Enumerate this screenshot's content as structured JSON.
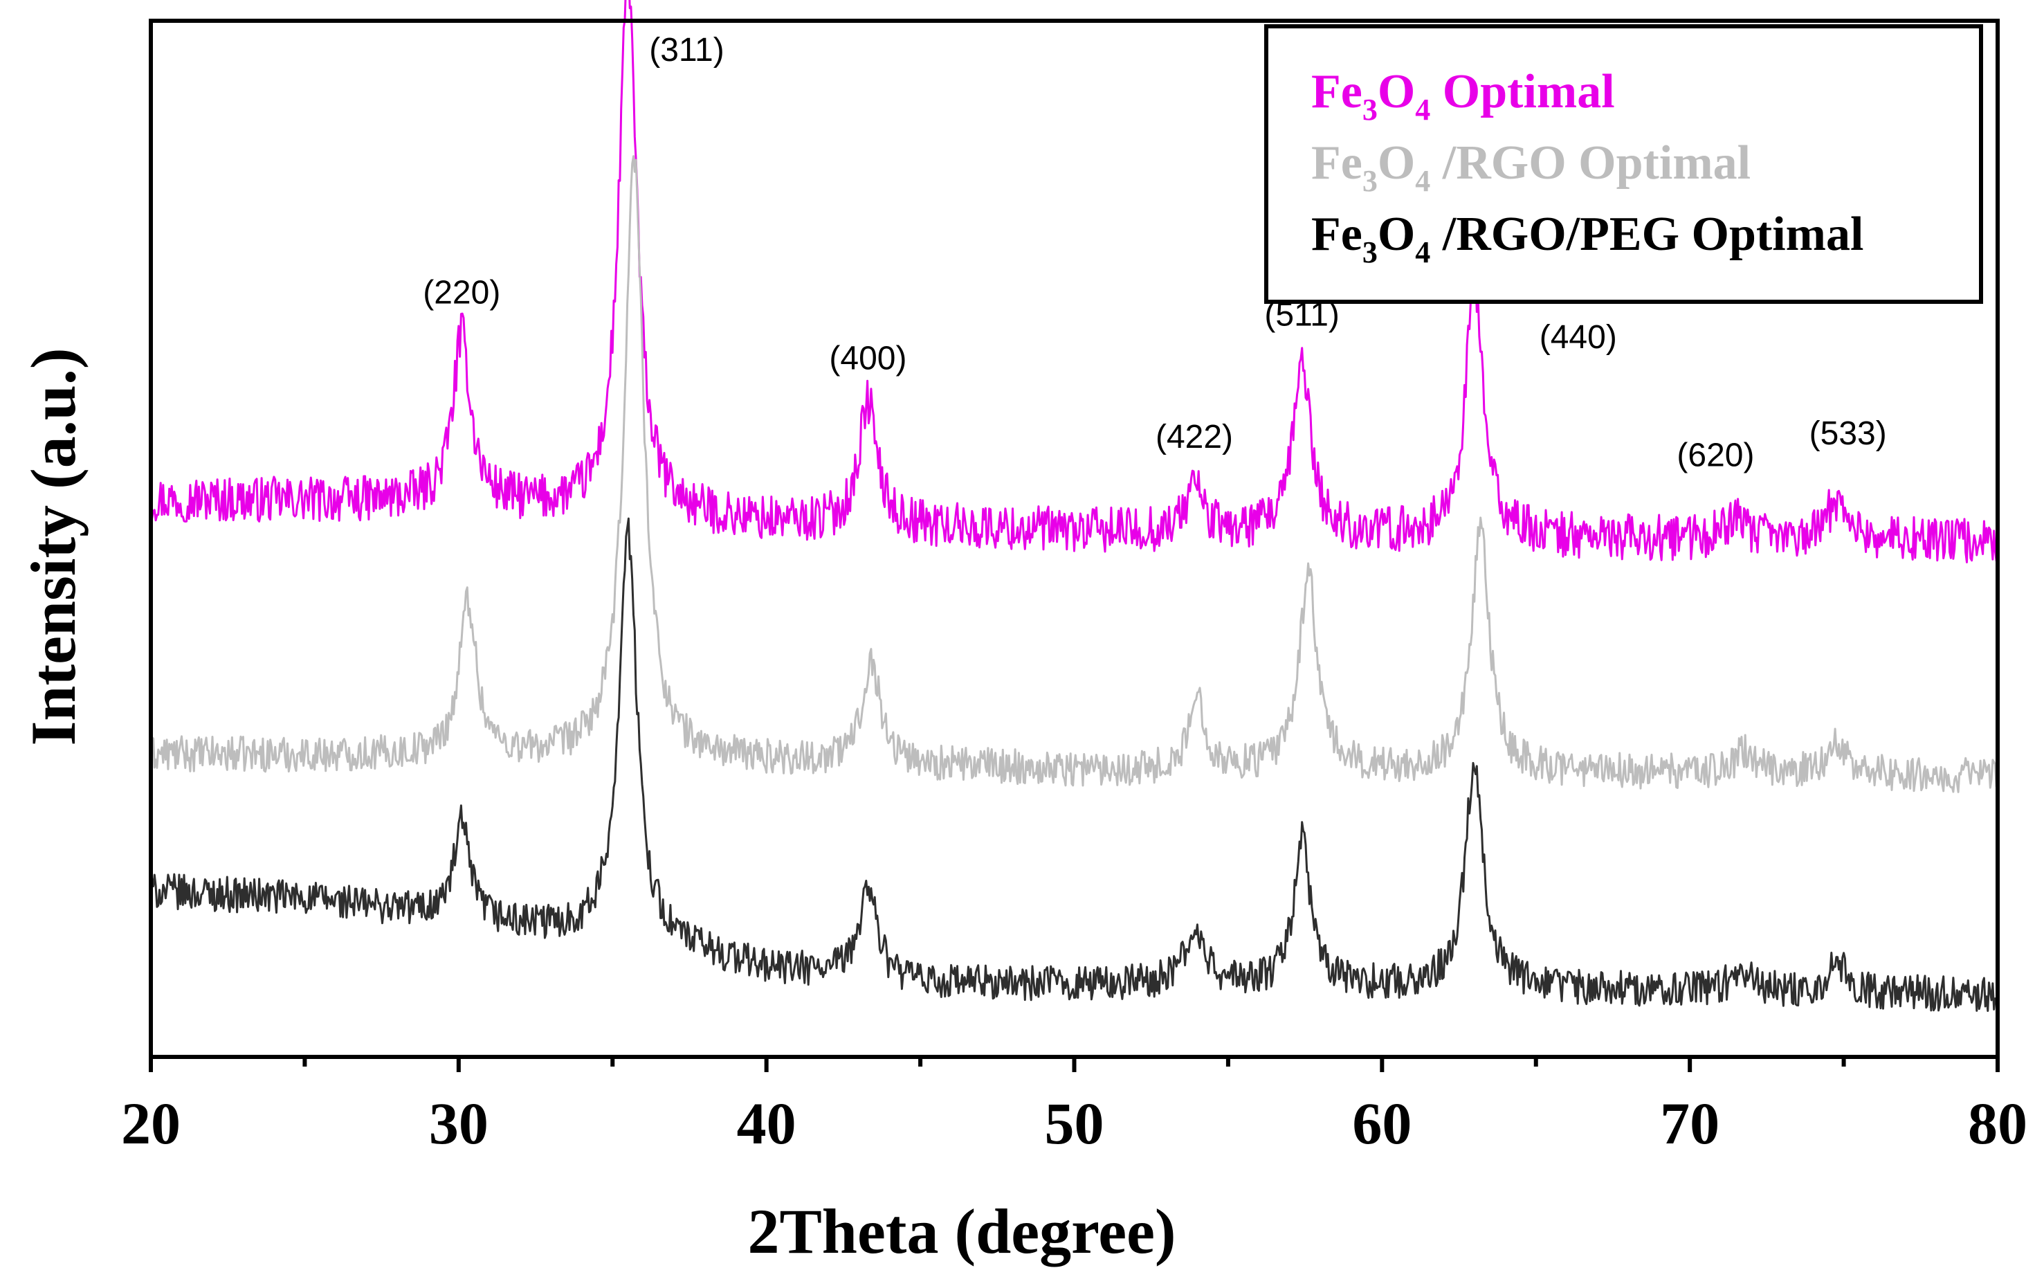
{
  "chart_data": {
    "type": "line",
    "title": "",
    "xlabel": "2Theta (degree)",
    "ylabel": "Intensity (a.u.)",
    "xlim": [
      20,
      80
    ],
    "ylim": [
      0,
      1
    ],
    "x_ticks": [
      "20",
      "30",
      "40",
      "50",
      "60",
      "70",
      "80"
    ],
    "x_tick_values": [
      20,
      30,
      40,
      50,
      60,
      70,
      80
    ],
    "grid": false,
    "legend_position": "top-right",
    "legend": [
      {
        "prefix": "Fe",
        "sub1": "3",
        "mid": "O",
        "sub2": "4",
        "suffix": " Optimal",
        "color": "#e800e8"
      },
      {
        "prefix": "Fe",
        "sub1": "3",
        "mid": "O",
        "sub2": "4",
        "suffix": " /RGO Optimal",
        "color": "#bdbdbd"
      },
      {
        "prefix": "Fe",
        "sub1": "3",
        "mid": "O",
        "sub2": "4",
        "suffix": " /RGO/PEG Optimal",
        "color": "#000000"
      }
    ],
    "peak_labels": [
      {
        "text": "(220)",
        "x": 30.1
      },
      {
        "text": "(311)",
        "x": 35.5
      },
      {
        "text": "(400)",
        "x": 43.3
      },
      {
        "text": "(422)",
        "x": 53.9
      },
      {
        "text": "(511)",
        "x": 57.4
      },
      {
        "text": "(440)",
        "x": 63.0
      },
      {
        "text": "(620)",
        "x": 71.4
      },
      {
        "text": "(533)",
        "x": 74.8
      }
    ],
    "series": [
      {
        "name": "Fe3O4 Optimal",
        "color": "#e800e8",
        "baseline": [
          [
            20,
            0.538
          ],
          [
            30,
            0.535
          ],
          [
            40,
            0.515
          ],
          [
            50,
            0.507
          ],
          [
            60,
            0.503
          ],
          [
            70,
            0.499
          ],
          [
            80,
            0.498
          ]
        ],
        "peaks": [
          [
            30.1,
            0.16,
            0.35
          ],
          [
            35.5,
            0.52,
            0.35
          ],
          [
            43.3,
            0.12,
            0.35
          ],
          [
            53.9,
            0.05,
            0.3
          ],
          [
            57.4,
            0.17,
            0.33
          ],
          [
            63.0,
            0.24,
            0.35
          ],
          [
            71.4,
            0.02,
            0.4
          ],
          [
            74.8,
            0.04,
            0.4
          ]
        ],
        "noise": 0.022
      },
      {
        "name": "Fe3O4 /RGO Optimal",
        "color": "#bdbdbd",
        "baseline": [
          [
            20,
            0.292
          ],
          [
            30,
            0.29
          ],
          [
            40,
            0.285
          ],
          [
            50,
            0.277
          ],
          [
            60,
            0.276
          ],
          [
            70,
            0.274
          ],
          [
            80,
            0.271
          ]
        ],
        "peaks": [
          [
            30.3,
            0.15,
            0.33
          ],
          [
            35.7,
            0.58,
            0.38
          ],
          [
            43.4,
            0.1,
            0.35
          ],
          [
            54.0,
            0.07,
            0.3
          ],
          [
            57.6,
            0.19,
            0.35
          ],
          [
            63.2,
            0.23,
            0.35
          ],
          [
            71.8,
            0.02,
            0.4
          ],
          [
            74.8,
            0.03,
            0.4
          ]
        ],
        "noise": 0.017
      },
      {
        "name": "Fe3O4 /RGO/PEG Optimal",
        "color": "#2e2e2e",
        "baseline": [
          [
            20,
            0.16
          ],
          [
            25,
            0.153
          ],
          [
            30,
            0.135
          ],
          [
            32,
            0.125
          ],
          [
            34,
            0.12
          ],
          [
            35,
            0.12
          ],
          [
            40,
            0.085
          ],
          [
            45,
            0.07
          ],
          [
            50,
            0.07
          ],
          [
            60,
            0.068
          ],
          [
            70,
            0.064
          ],
          [
            80,
            0.06
          ]
        ],
        "peaks": [
          [
            30.1,
            0.09,
            0.3
          ],
          [
            35.5,
            0.39,
            0.35
          ],
          [
            43.3,
            0.09,
            0.35
          ],
          [
            53.9,
            0.05,
            0.4
          ],
          [
            57.4,
            0.14,
            0.33
          ],
          [
            63.0,
            0.22,
            0.35
          ],
          [
            71.7,
            0.02,
            0.4
          ],
          [
            74.8,
            0.03,
            0.35
          ]
        ],
        "noise": 0.017
      }
    ]
  }
}
